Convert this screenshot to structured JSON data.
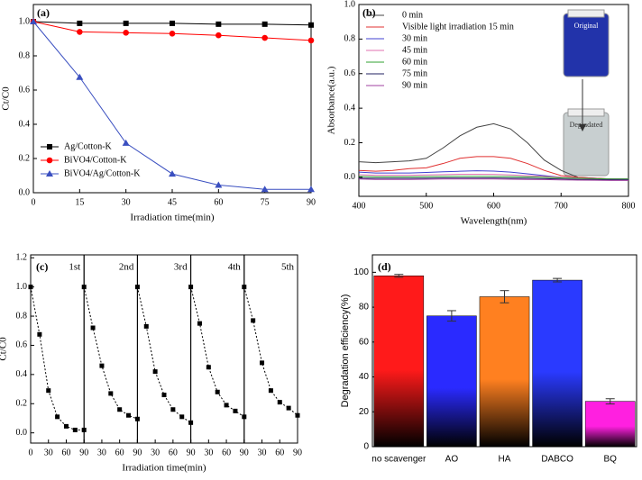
{
  "chart_data": [
    {
      "type": "line",
      "panel_label": "(a)",
      "xlabel": "Irradiation time(min)",
      "ylabel": "Ct/C0",
      "x": [
        0,
        15,
        30,
        45,
        60,
        75,
        90
      ],
      "xlim": [
        0,
        90
      ],
      "xticks": [
        0,
        15,
        30,
        45,
        60,
        75,
        90
      ],
      "ylim": [
        0,
        1.1
      ],
      "yticks": [
        {
          "value": 0,
          "label": "0.0"
        },
        0.2,
        0.4,
        0.6,
        0.8,
        {
          "value": 1,
          "label": "1.0"
        }
      ],
      "legend": "lower left",
      "series": [
        {
          "name": "Ag/Cotton-K",
          "color": "#000000",
          "marker": "square",
          "values": [
            1.0,
            0.99,
            0.99,
            0.99,
            0.985,
            0.985,
            0.98
          ]
        },
        {
          "name": "BiVO4/Cotton-K",
          "color": "#ff0000",
          "marker": "circle",
          "values": [
            1.0,
            0.94,
            0.935,
            0.93,
            0.92,
            0.905,
            0.89
          ]
        },
        {
          "name": "BiVO4/Ag/Cotton-K",
          "color": "#3a4fc0",
          "marker": "triangle",
          "values": [
            1.0,
            0.675,
            0.29,
            0.11,
            0.045,
            0.02,
            0.02
          ]
        }
      ]
    },
    {
      "type": "line",
      "panel_label": "(b)",
      "xlabel": "Wavelength(nm)",
      "ylabel": "Absorbance(a.u.)",
      "x": [
        400,
        425,
        450,
        475,
        500,
        525,
        550,
        575,
        600,
        625,
        650,
        675,
        700,
        725,
        750,
        775,
        800
      ],
      "xlim": [
        400,
        800
      ],
      "xticks": [
        400,
        500,
        600,
        700,
        800
      ],
      "ylim": [
        -0.11,
        1.0
      ],
      "yticks": [
        {
          "value": 0,
          "label": "0.0"
        },
        0.2,
        0.4,
        0.6,
        0.8,
        {
          "value": 1,
          "label": "1.0"
        }
      ],
      "legend": "upper left",
      "annotations": [
        "Original",
        "Degradated"
      ],
      "series": [
        {
          "name": "0 min",
          "color": "#444444",
          "values": [
            0.09,
            0.085,
            0.09,
            0.095,
            0.11,
            0.17,
            0.24,
            0.29,
            0.31,
            0.28,
            0.2,
            0.1,
            0.04,
            0.0,
            -0.005,
            -0.01,
            -0.01
          ]
        },
        {
          "name": "Visible light irradiation 15 min",
          "color": "#e03030",
          "values": [
            0.04,
            0.035,
            0.04,
            0.05,
            0.055,
            0.08,
            0.11,
            0.12,
            0.12,
            0.11,
            0.08,
            0.04,
            0.01,
            0.0,
            -0.005,
            -0.01,
            -0.01
          ]
        },
        {
          "name": "30 min",
          "color": "#4040d0",
          "values": [
            0.03,
            0.025,
            0.025,
            0.025,
            0.028,
            0.032,
            0.035,
            0.038,
            0.036,
            0.03,
            0.02,
            0.01,
            0.0,
            -0.005,
            -0.008,
            -0.01,
            -0.01
          ]
        },
        {
          "name": "45 min",
          "color": "#e070b0",
          "values": [
            0.015,
            0.012,
            0.012,
            0.012,
            0.014,
            0.016,
            0.018,
            0.018,
            0.017,
            0.014,
            0.01,
            0.005,
            0.0,
            -0.005,
            -0.008,
            -0.01,
            -0.01
          ]
        },
        {
          "name": "60 min",
          "color": "#30a030",
          "values": [
            0.005,
            0.003,
            0.003,
            0.003,
            0.004,
            0.005,
            0.006,
            0.006,
            0.005,
            0.004,
            0.002,
            0.0,
            -0.003,
            -0.006,
            -0.008,
            -0.01,
            -0.01
          ]
        },
        {
          "name": "75 min",
          "color": "#202060",
          "values": [
            -0.005,
            -0.006,
            -0.006,
            -0.006,
            -0.005,
            -0.004,
            -0.004,
            -0.004,
            -0.004,
            -0.005,
            -0.006,
            -0.008,
            -0.01,
            -0.012,
            -0.013,
            -0.014,
            -0.015
          ]
        },
        {
          "name": "90 min",
          "color": "#a040a0",
          "values": [
            -0.01,
            -0.012,
            -0.012,
            -0.012,
            -0.011,
            -0.01,
            -0.01,
            -0.01,
            -0.01,
            -0.011,
            -0.012,
            -0.013,
            -0.015,
            -0.016,
            -0.017,
            -0.018,
            -0.018
          ]
        }
      ]
    },
    {
      "type": "small-multiples",
      "panel_label": "(c)",
      "xlabel": "Irradiation time(min)",
      "ylabel": "Ct/C0",
      "x": [
        0,
        15,
        30,
        45,
        60,
        75,
        90
      ],
      "xlim": [
        0,
        90
      ],
      "xticks": [
        0,
        30,
        60,
        90
      ],
      "ylim": [
        -0.07,
        1.22
      ],
      "yticks": [
        {
          "value": 0,
          "label": "0.0"
        },
        0.2,
        0.4,
        0.6,
        0.8,
        {
          "value": 1,
          "label": "1.0"
        },
        1.2
      ],
      "color": "#000000",
      "series": [
        {
          "name": "1st",
          "values": [
            1.0,
            0.675,
            0.29,
            0.11,
            0.045,
            0.02,
            0.02
          ]
        },
        {
          "name": "2nd",
          "values": [
            1.0,
            0.72,
            0.46,
            0.27,
            0.16,
            0.12,
            0.095
          ]
        },
        {
          "name": "3rd",
          "values": [
            1.0,
            0.73,
            0.42,
            0.26,
            0.16,
            0.11,
            0.07
          ]
        },
        {
          "name": "4th",
          "values": [
            1.0,
            0.75,
            0.45,
            0.28,
            0.19,
            0.15,
            0.11
          ]
        },
        {
          "name": "5th",
          "values": [
            1.0,
            0.77,
            0.48,
            0.29,
            0.21,
            0.17,
            0.12
          ]
        }
      ]
    },
    {
      "type": "bar",
      "panel_label": "(d)",
      "ylabel": "Degradation efficiency(%)",
      "categories": [
        "no scavenger",
        "AO",
        "HA",
        "DABCO",
        "BQ"
      ],
      "values": [
        98,
        75,
        86,
        95.5,
        26
      ],
      "errors": [
        0.8,
        3,
        3.5,
        1,
        1.5
      ],
      "colors": [
        "#ff1a1a",
        "#2a2aff",
        "#ff8020",
        "#2a3aff",
        "#ff20e0"
      ],
      "ylim": [
        0,
        110
      ],
      "yticks": [
        0,
        20,
        40,
        60,
        80,
        100
      ]
    }
  ]
}
